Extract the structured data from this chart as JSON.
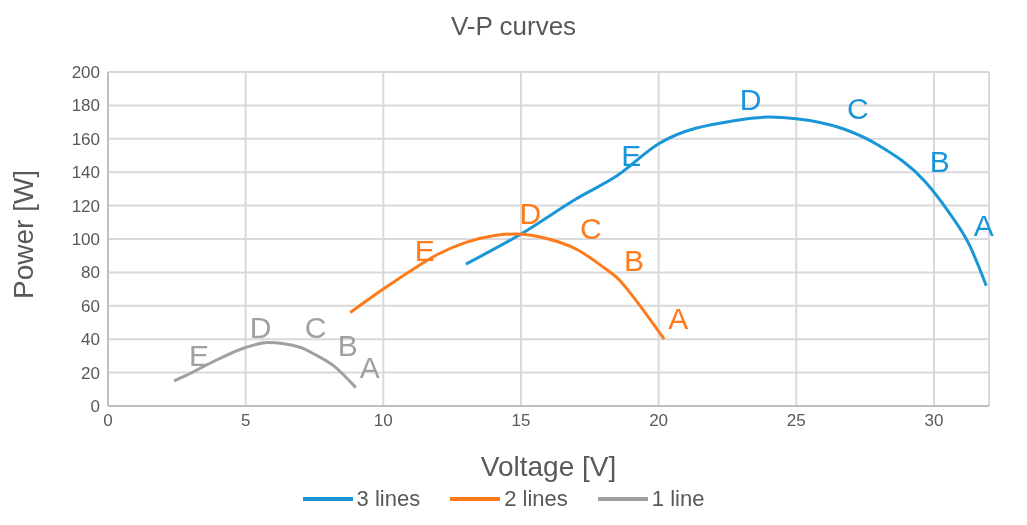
{
  "chart_data": {
    "type": "line",
    "title": "V-P curves",
    "xlabel": "Voltage [V]",
    "ylabel": "Power [W]",
    "xlim": [
      0,
      32
    ],
    "xticks": [
      0,
      5,
      10,
      15,
      20,
      25,
      30
    ],
    "ylim": [
      0,
      200
    ],
    "yticks": [
      0,
      20,
      40,
      60,
      80,
      100,
      120,
      140,
      160,
      180,
      200
    ],
    "grid": true,
    "legend": "bottom",
    "marker": "none",
    "line_style": "solid",
    "series": [
      {
        "name": "3 lines",
        "color": "#1a96d8",
        "x": [
          13,
          15,
          17,
          18.5,
          20,
          22.8,
          24,
          25,
          26.7,
          28,
          29.7,
          30.5,
          31.3,
          31.9
        ],
        "values": [
          85,
          103,
          124,
          138,
          157,
          171,
          173,
          172,
          166,
          156,
          134,
          117,
          96,
          72
        ],
        "value_labels": [
          null,
          null,
          null,
          "E",
          null,
          "D",
          null,
          null,
          "C",
          null,
          "B",
          null,
          "A",
          null
        ]
      },
      {
        "name": "2 lines",
        "color": "#ff7a1a",
        "x": [
          8.8,
          10,
          11,
          12,
          13,
          14,
          14.8,
          16,
          17,
          18,
          18.6,
          19,
          20.2
        ],
        "values": [
          56,
          70,
          81,
          91,
          98,
          102,
          103,
          100,
          94,
          83,
          75,
          67,
          40
        ],
        "value_labels": [
          null,
          null,
          "E",
          null,
          null,
          null,
          "D",
          null,
          "C",
          null,
          "B",
          null,
          "A"
        ]
      },
      {
        "name": "1 line",
        "color": "#a0a0a0",
        "x": [
          2.4,
          2.8,
          4,
          5,
          5.8,
          7,
          7.5,
          8.2,
          9
        ],
        "values": [
          15,
          18,
          28,
          35,
          38,
          35,
          31,
          24,
          11
        ],
        "value_labels": [
          null,
          "E",
          null,
          "D",
          null,
          "C",
          null,
          "B",
          "A"
        ]
      }
    ]
  }
}
